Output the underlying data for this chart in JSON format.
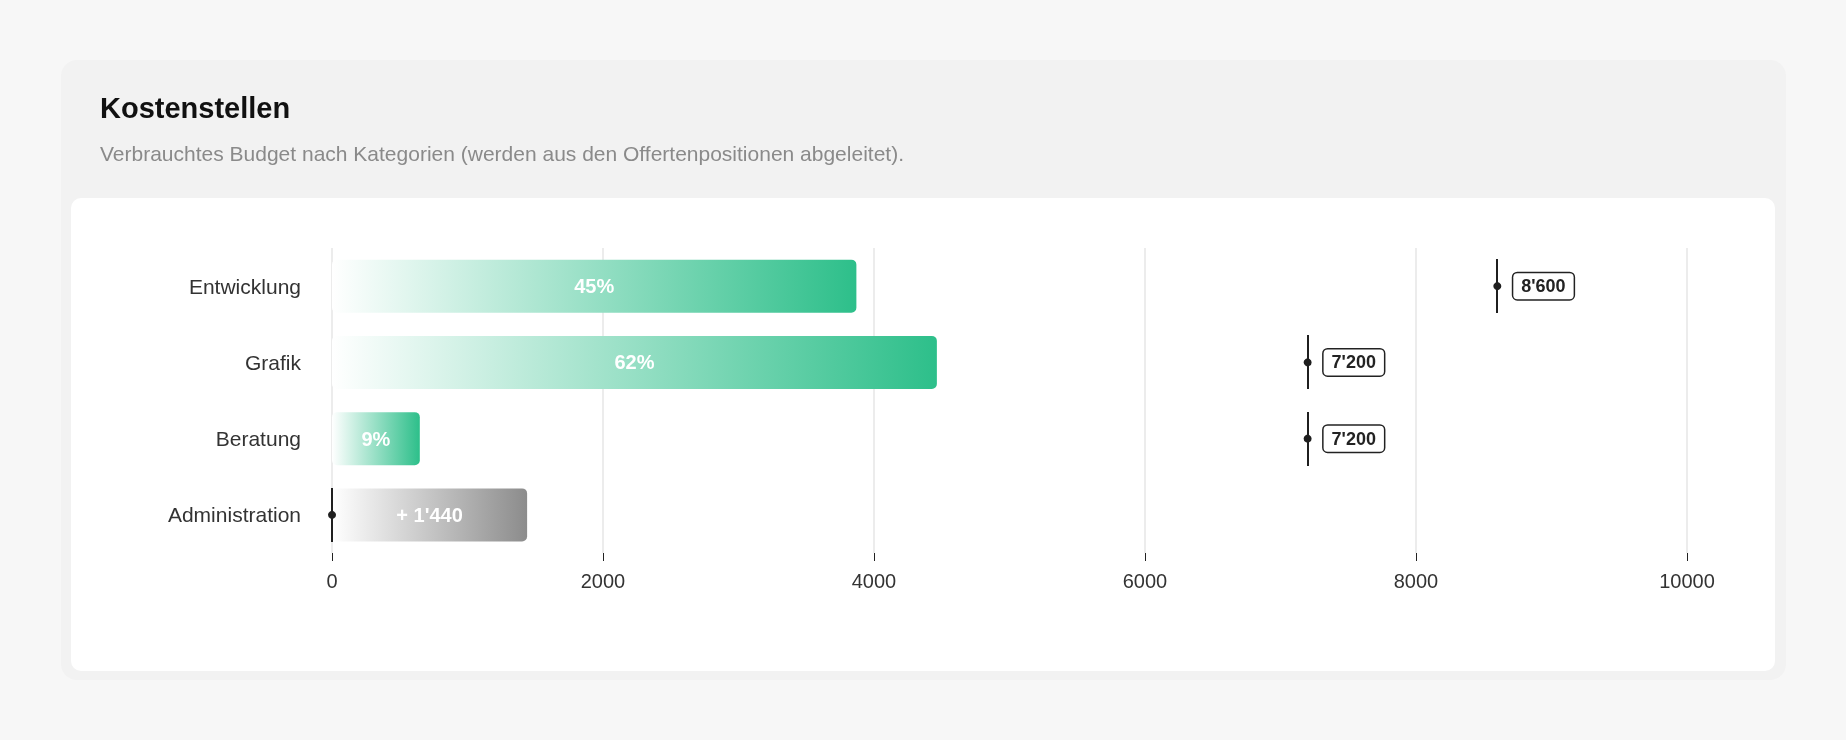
{
  "chart_data": {
    "type": "bar",
    "orientation": "horizontal",
    "title": "Kostenstellen",
    "subtitle": "Verbrauchtes Budget nach Kategorien (werden aus den Offertenpositionen abgeleitet).",
    "categories": [
      "Entwicklung",
      "Grafik",
      "Beratung",
      "Administration"
    ],
    "series": [
      {
        "colors": [
          "#2dbf8a",
          "#2dbf8a",
          "#2dbf8a",
          "#8c8c8c"
        ],
        "values": [
          3870,
          4464,
          648,
          1440
        ],
        "value_labels": [
          null,
          null,
          null,
          "+ 1'440"
        ]
      },
      {
        "type": "scatter",
        "color": "#1f1f1f",
        "marker": "circle",
        "values": [
          8600,
          7200,
          7200,
          0
        ],
        "value_labels": [
          "8'600",
          "7'200",
          "7'200",
          null
        ]
      }
    ],
    "annotations": [
      "45%",
      "62%",
      "9%"
    ],
    "xlim": [
      0,
      10000
    ],
    "xticks": [
      0,
      2000,
      4000,
      6000,
      8000,
      10000
    ],
    "grid": "x"
  }
}
